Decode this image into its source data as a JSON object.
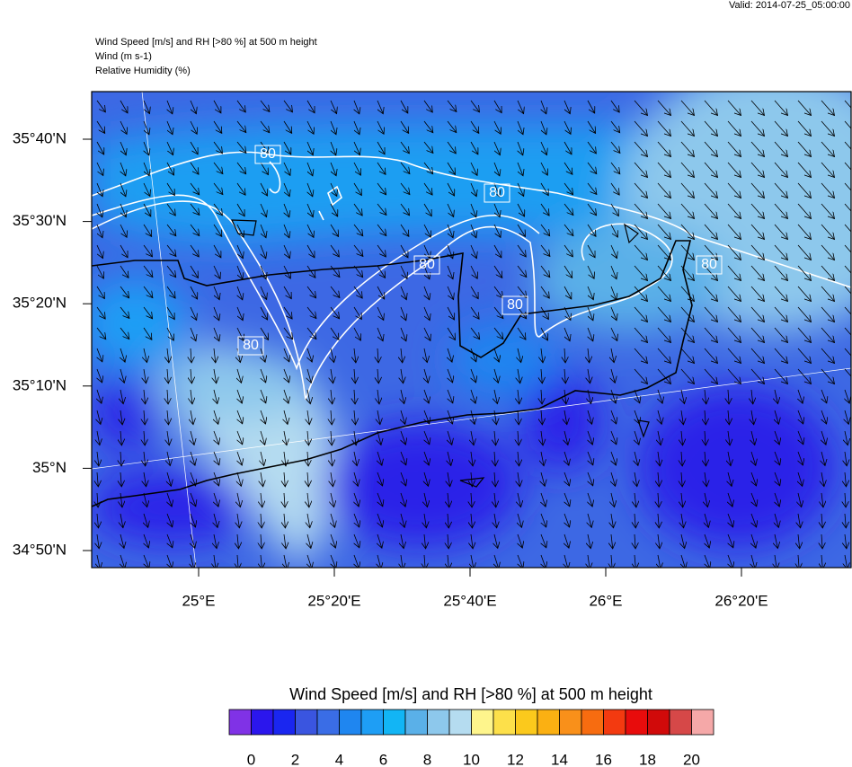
{
  "header": {
    "valid": "Valid: 2014-07-25_05:00:00",
    "title_lines": [
      "Wind Speed [m/s] and RH [>80 %] at 500 m height",
      "Wind   (m s-1)",
      "Relative Humidity   (%)"
    ]
  },
  "map": {
    "lat_labels": [
      "35°40'N",
      "35°30'N",
      "35°20'N",
      "35°10'N",
      "35°N",
      "34°50'N"
    ],
    "lon_labels": [
      "25°E",
      "25°20'E",
      "25°40'E",
      "26°E",
      "26°20'E"
    ],
    "contour_labels": [
      "80",
      "80",
      "80",
      "80",
      "80",
      "80"
    ]
  },
  "colorbar": {
    "title": "Wind Speed [m/s] and RH [>80 %] at 500 m height",
    "ticks": [
      0,
      2,
      4,
      6,
      8,
      10,
      12,
      14,
      16,
      18,
      20
    ],
    "colors": [
      "#8032e6",
      "#2b16ed",
      "#1a26f0",
      "#3a55e0",
      "#3a6de6",
      "#1f86f0",
      "#1e9ef5",
      "#12b5f5",
      "#5ab0e8",
      "#8dc8ec",
      "#b5dcf0",
      "#fef58c",
      "#fde04a",
      "#fbc91c",
      "#fbb012",
      "#f9901a",
      "#f76c10",
      "#f33a10",
      "#e80c0c",
      "#d10a0a",
      "#d64848",
      "#f5a8a8"
    ]
  }
}
